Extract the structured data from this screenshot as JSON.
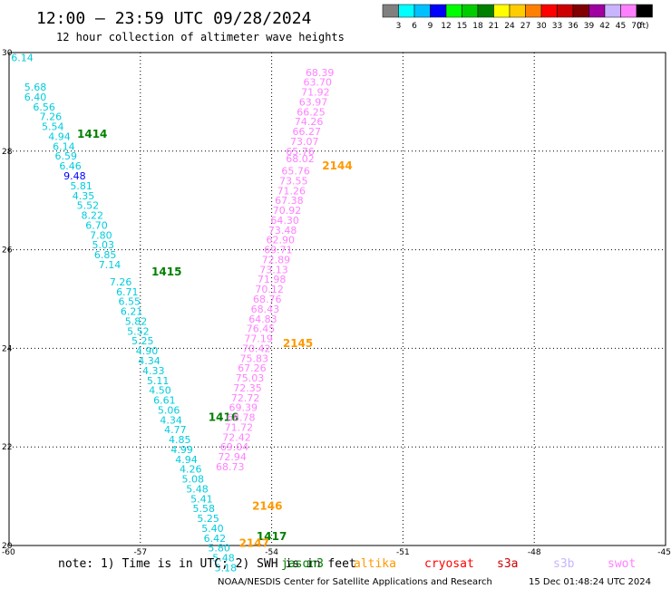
{
  "header": {
    "title": "12:00 – 23:59 UTC 09/28/2024",
    "subtitle": "12 hour collection of altimeter wave heights"
  },
  "colorbar": {
    "colors": [
      "#808080",
      "#00ffff",
      "#00c0ff",
      "#0000ff",
      "#00ff00",
      "#00cc00",
      "#008000",
      "#ffff00",
      "#ffcc00",
      "#ff8000",
      "#ff0000",
      "#cc0000",
      "#800000",
      "#a000a0",
      "#c8b4ff",
      "#ff80ff",
      "#000000"
    ],
    "labels": [
      "3",
      "6",
      "9",
      "12",
      "15",
      "18",
      "21",
      "24",
      "27",
      "30",
      "33",
      "36",
      "39",
      "42",
      "45",
      "70",
      "(ft)"
    ]
  },
  "footer": {
    "note": "note: 1) Time is in UTC; 2) SWH is in feet",
    "credit": "NOAA/NESDIS Center for Satellite Applications and Research",
    "timestamp": "15 Dec 01:48:24 UTC 2024"
  },
  "legend": [
    {
      "name": "jason3",
      "color": "#008000"
    },
    {
      "name": "altika",
      "color": "#ff9900"
    },
    {
      "name": "cryosat",
      "color": "#ff0000"
    },
    {
      "name": "s3a",
      "color": "#cc0000"
    },
    {
      "name": "s3b",
      "color": "#c8b4ff"
    },
    {
      "name": "swot",
      "color": "#ff80ff"
    }
  ],
  "chart_data": {
    "type": "scatter",
    "xlim": [
      -60,
      -45
    ],
    "ylim": [
      20,
      30
    ],
    "x_ticks": [
      -60,
      -57,
      -54,
      -51,
      -48,
      -45
    ],
    "y_ticks": [
      20,
      22,
      24,
      26,
      28,
      30
    ],
    "y_tick_labels": [
      "20",
      "22",
      "24",
      "26",
      "28",
      "30"
    ],
    "grid": true,
    "series": [
      {
        "name": "jason3",
        "color": "#00ccdd",
        "track_labels": [
          {
            "text": "1414",
            "x": -58.1,
            "y": 28.35
          },
          {
            "text": "1415",
            "x": -56.4,
            "y": 25.55
          },
          {
            "text": "1416",
            "x": -55.1,
            "y": 22.6
          },
          {
            "text": "1417",
            "x": -54.0,
            "y": 20.18
          }
        ],
        "points": [
          {
            "x": -59.7,
            "y": 29.9,
            "v": "6.14"
          },
          {
            "x": -59.4,
            "y": 29.3,
            "v": "5.68"
          },
          {
            "x": -59.4,
            "y": 29.1,
            "v": "6.40"
          },
          {
            "x": -59.2,
            "y": 28.9,
            "v": "6.56"
          },
          {
            "x": -59.05,
            "y": 28.7,
            "v": "7.26"
          },
          {
            "x": -59.0,
            "y": 28.5,
            "v": "5.54"
          },
          {
            "x": -58.85,
            "y": 28.3,
            "v": "4.94"
          },
          {
            "x": -58.75,
            "y": 28.1,
            "v": "6.14"
          },
          {
            "x": -58.7,
            "y": 27.9,
            "v": "6.59"
          },
          {
            "x": -58.6,
            "y": 27.7,
            "v": "6.46"
          },
          {
            "x": -58.5,
            "y": 27.5,
            "v": "9.48"
          },
          {
            "x": -58.35,
            "y": 27.3,
            "v": "5.81"
          },
          {
            "x": -58.3,
            "y": 27.1,
            "v": "4.35"
          },
          {
            "x": -58.2,
            "y": 26.9,
            "v": "5.52"
          },
          {
            "x": -58.1,
            "y": 26.7,
            "v": "8.22"
          },
          {
            "x": -58.0,
            "y": 26.5,
            "v": "6.70"
          },
          {
            "x": -57.9,
            "y": 26.3,
            "v": "7.80"
          },
          {
            "x": -57.85,
            "y": 26.1,
            "v": "5.03"
          },
          {
            "x": -57.8,
            "y": 25.9,
            "v": "6.85"
          },
          {
            "x": -57.7,
            "y": 25.7,
            "v": "7.14"
          },
          {
            "x": -57.45,
            "y": 25.35,
            "v": "7.26"
          },
          {
            "x": -57.3,
            "y": 25.15,
            "v": "6.71"
          },
          {
            "x": -57.25,
            "y": 24.95,
            "v": "6.55"
          },
          {
            "x": -57.2,
            "y": 24.75,
            "v": "6.21"
          },
          {
            "x": -57.1,
            "y": 24.55,
            "v": "5.82"
          },
          {
            "x": -57.05,
            "y": 24.35,
            "v": "5.52"
          },
          {
            "x": -56.95,
            "y": 24.15,
            "v": "5.25"
          },
          {
            "x": -56.85,
            "y": 23.95,
            "v": "4.90"
          },
          {
            "x": -56.8,
            "y": 23.75,
            "v": "4.34"
          },
          {
            "x": -56.7,
            "y": 23.55,
            "v": "4.33"
          },
          {
            "x": -56.6,
            "y": 23.35,
            "v": "5.11"
          },
          {
            "x": -56.55,
            "y": 23.15,
            "v": "4.50"
          },
          {
            "x": -56.45,
            "y": 22.95,
            "v": "6.61"
          },
          {
            "x": -56.35,
            "y": 22.75,
            "v": "5.06"
          },
          {
            "x": -56.3,
            "y": 22.55,
            "v": "4.34"
          },
          {
            "x": -56.2,
            "y": 22.35,
            "v": "4.77"
          },
          {
            "x": -56.1,
            "y": 22.15,
            "v": "4.85"
          },
          {
            "x": -56.05,
            "y": 21.95,
            "v": "4.99"
          },
          {
            "x": -55.95,
            "y": 21.75,
            "v": "4.94"
          },
          {
            "x": -55.85,
            "y": 21.55,
            "v": "4.26"
          },
          {
            "x": -55.8,
            "y": 21.35,
            "v": "5.08"
          },
          {
            "x": -55.7,
            "y": 21.15,
            "v": "5.48"
          },
          {
            "x": -55.6,
            "y": 20.95,
            "v": "5.41"
          },
          {
            "x": -55.55,
            "y": 20.75,
            "v": "5.58"
          },
          {
            "x": -55.45,
            "y": 20.55,
            "v": "5.25"
          },
          {
            "x": -55.35,
            "y": 20.35,
            "v": "5.40"
          },
          {
            "x": -55.3,
            "y": 20.15,
            "v": "6.42"
          },
          {
            "x": -55.2,
            "y": 19.95,
            "v": "5.80"
          },
          {
            "x": -55.1,
            "y": 19.75,
            "v": "5.48"
          },
          {
            "x": -55.05,
            "y": 19.55,
            "v": "5.18"
          }
        ]
      },
      {
        "name": "swot",
        "color": "#ff80ff",
        "track_labels": [
          {
            "text": "2144",
            "x": -52.5,
            "y": 27.7
          },
          {
            "text": "2145",
            "x": -53.4,
            "y": 24.1
          },
          {
            "text": "2146",
            "x": -54.1,
            "y": 20.8
          },
          {
            "text": "2147",
            "x": -54.4,
            "y": 20.05
          }
        ],
        "points": [
          {
            "x": -52.9,
            "y": 29.6,
            "v": "68.39"
          },
          {
            "x": -52.95,
            "y": 29.4,
            "v": "63.70"
          },
          {
            "x": -53.0,
            "y": 29.2,
            "v": "71.92"
          },
          {
            "x": -53.05,
            "y": 29.0,
            "v": "63.97"
          },
          {
            "x": -53.1,
            "y": 28.8,
            "v": "66.25"
          },
          {
            "x": -53.15,
            "y": 28.6,
            "v": "74.26"
          },
          {
            "x": -53.2,
            "y": 28.4,
            "v": "66.27"
          },
          {
            "x": -53.25,
            "y": 28.2,
            "v": "73.07"
          },
          {
            "x": -53.35,
            "y": 28.0,
            "v": "65.76"
          },
          {
            "x": -53.35,
            "y": 27.85,
            "v": "68.02"
          },
          {
            "x": -53.45,
            "y": 27.6,
            "v": "65.76"
          },
          {
            "x": -53.5,
            "y": 27.4,
            "v": "73.55"
          },
          {
            "x": -53.55,
            "y": 27.2,
            "v": "71.26"
          },
          {
            "x": -53.6,
            "y": 27.0,
            "v": "67.38"
          },
          {
            "x": -53.65,
            "y": 26.8,
            "v": "70.92"
          },
          {
            "x": -53.7,
            "y": 26.6,
            "v": "64.30"
          },
          {
            "x": -53.75,
            "y": 26.4,
            "v": "73.48"
          },
          {
            "x": -53.8,
            "y": 26.2,
            "v": "62.90"
          },
          {
            "x": -53.85,
            "y": 26.0,
            "v": "69.71"
          },
          {
            "x": -53.9,
            "y": 25.8,
            "v": "72.89"
          },
          {
            "x": -53.95,
            "y": 25.6,
            "v": "73.13"
          },
          {
            "x": -54.0,
            "y": 25.4,
            "v": "71.98"
          },
          {
            "x": -54.05,
            "y": 25.2,
            "v": "70.12"
          },
          {
            "x": -54.1,
            "y": 25.0,
            "v": "68.76"
          },
          {
            "x": -54.15,
            "y": 24.8,
            "v": "68.43"
          },
          {
            "x": -54.2,
            "y": 24.6,
            "v": "64.83"
          },
          {
            "x": -54.25,
            "y": 24.4,
            "v": "76.45"
          },
          {
            "x": -54.3,
            "y": 24.2,
            "v": "77.19"
          },
          {
            "x": -54.35,
            "y": 24.0,
            "v": "70.42"
          },
          {
            "x": -54.4,
            "y": 23.8,
            "v": "75.83"
          },
          {
            "x": -54.45,
            "y": 23.6,
            "v": "67.26"
          },
          {
            "x": -54.5,
            "y": 23.4,
            "v": "75.03"
          },
          {
            "x": -54.55,
            "y": 23.2,
            "v": "72.35"
          },
          {
            "x": -54.6,
            "y": 23.0,
            "v": "72.72"
          },
          {
            "x": -54.65,
            "y": 22.8,
            "v": "69.39"
          },
          {
            "x": -54.7,
            "y": 22.6,
            "v": "68.78"
          },
          {
            "x": -54.75,
            "y": 22.4,
            "v": "71.72"
          },
          {
            "x": -54.8,
            "y": 22.2,
            "v": "72.42"
          },
          {
            "x": -54.85,
            "y": 22.0,
            "v": "69.04"
          },
          {
            "x": -54.9,
            "y": 21.8,
            "v": "72.94"
          },
          {
            "x": -54.95,
            "y": 21.6,
            "v": "68.73"
          }
        ]
      }
    ]
  }
}
